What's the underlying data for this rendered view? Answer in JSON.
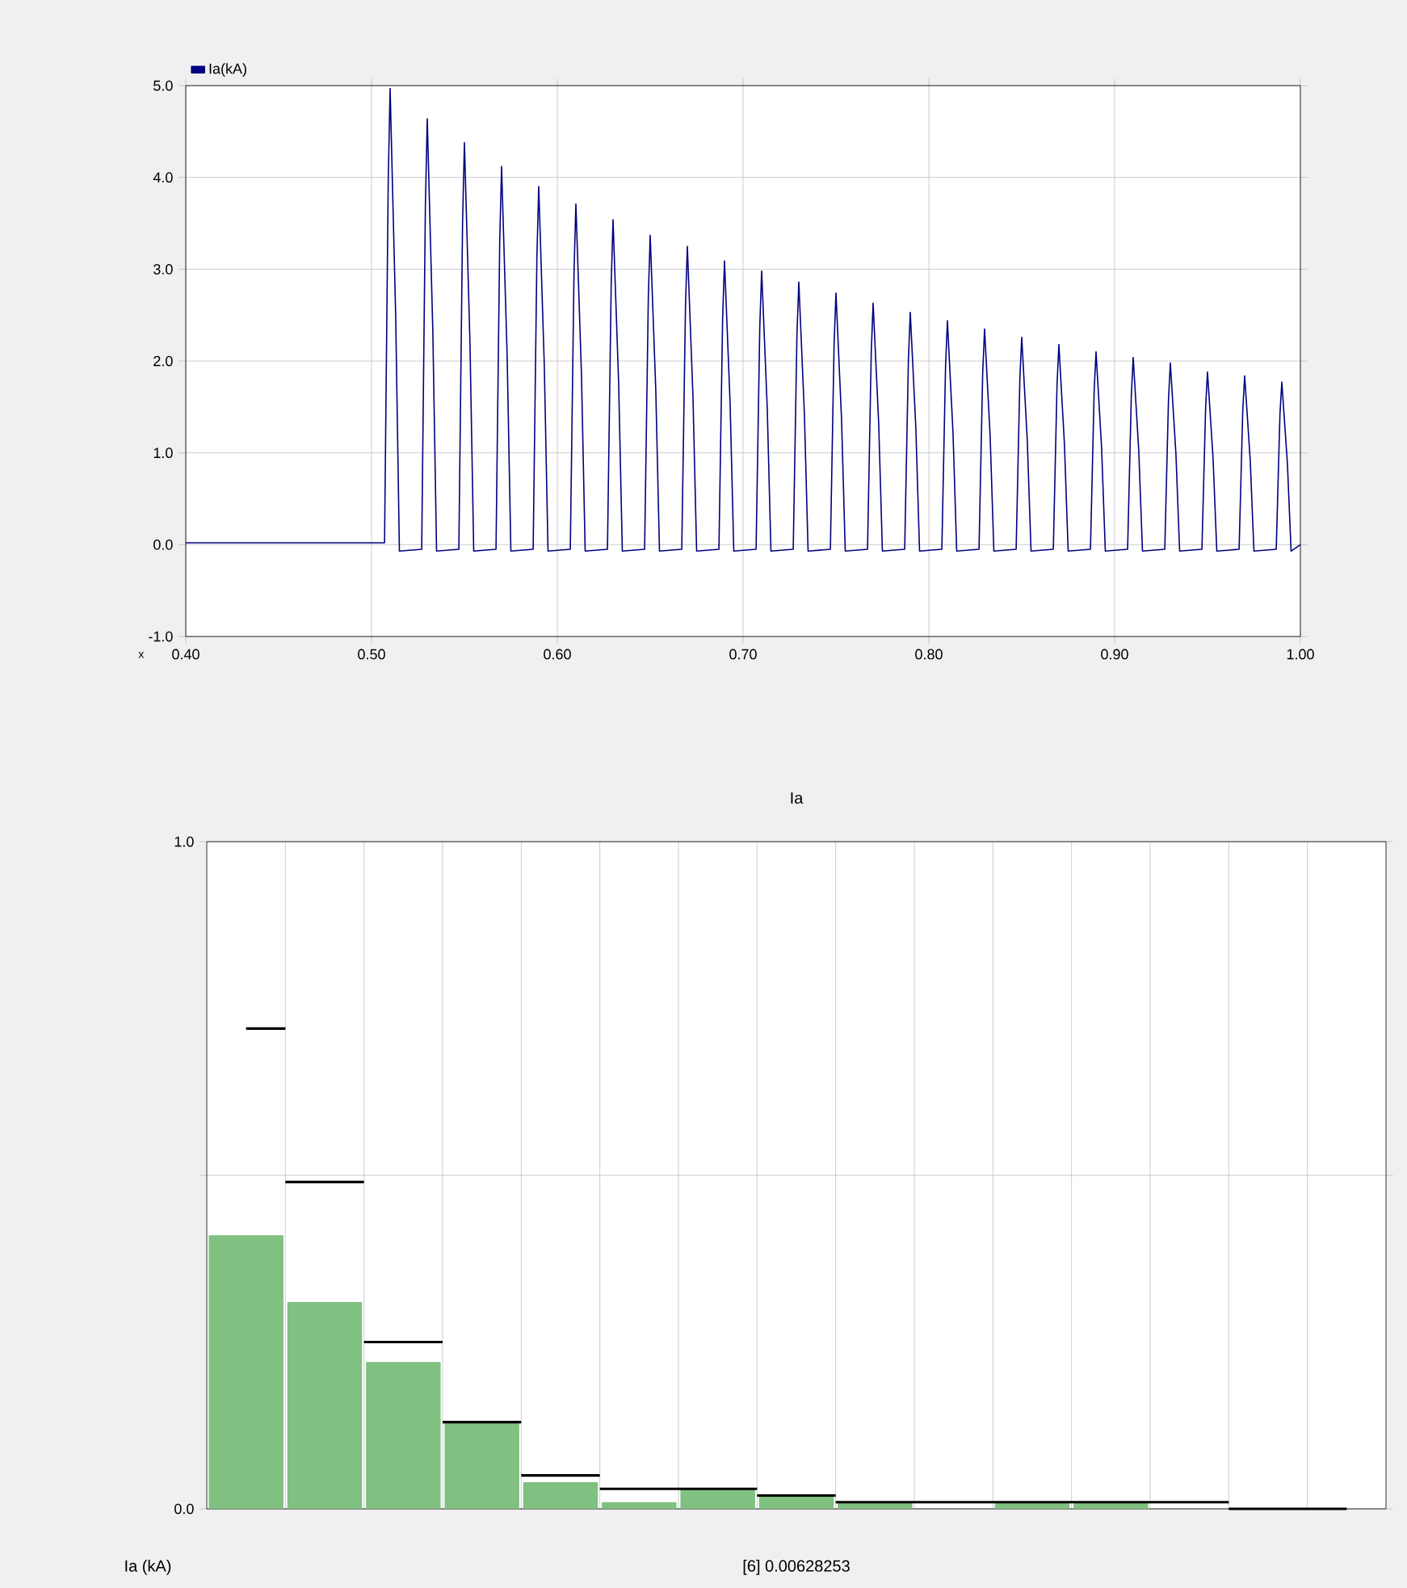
{
  "chart_data": [
    {
      "type": "line",
      "xlabel": "x",
      "xlim": [
        0.4,
        1.0
      ],
      "ylim": [
        -1,
        5
      ],
      "grid": true,
      "legend": "top left",
      "xticks": [
        {
          "value": 0.4,
          "label": "0.40"
        },
        {
          "value": 0.5,
          "label": "0.50"
        },
        {
          "value": 0.6,
          "label": "0.60"
        },
        {
          "value": 0.7,
          "label": "0.70"
        },
        {
          "value": 0.8,
          "label": "0.80"
        },
        {
          "value": 0.9,
          "label": "0.90"
        },
        {
          "value": 1.0,
          "label": "1.00"
        }
      ],
      "yticks": [
        {
          "value": -1,
          "label": "-1.0"
        },
        {
          "value": 0,
          "label": "0.0"
        },
        {
          "value": 1,
          "label": "1.0"
        },
        {
          "value": 2,
          "label": "2.0"
        },
        {
          "value": 3,
          "label": "3.0"
        },
        {
          "value": 4,
          "label": "4.0"
        },
        {
          "value": 5,
          "label": "5.0"
        }
      ],
      "series": [
        {
          "name": "Ia(kA)",
          "color": "#000080",
          "x": [
            0.4,
            0.505,
            0.507,
            0.509,
            0.51,
            0.513,
            0.515,
            0.527,
            0.529,
            0.53,
            0.533,
            0.535,
            0.547,
            0.549,
            0.55,
            0.553,
            0.555,
            0.567,
            0.569,
            0.57,
            0.573,
            0.575,
            0.587,
            0.589,
            0.59,
            0.593,
            0.595,
            0.607,
            0.609,
            0.61,
            0.613,
            0.615,
            0.627,
            0.629,
            0.63,
            0.633,
            0.635,
            0.647,
            0.649,
            0.65,
            0.653,
            0.655,
            0.667,
            0.669,
            0.67,
            0.673,
            0.675,
            0.687,
            0.689,
            0.69,
            0.693,
            0.695,
            0.707,
            0.709,
            0.71,
            0.713,
            0.715,
            0.727,
            0.729,
            0.73,
            0.733,
            0.735,
            0.747,
            0.749,
            0.75,
            0.753,
            0.755,
            0.767,
            0.769,
            0.77,
            0.773,
            0.775,
            0.787,
            0.789,
            0.79,
            0.793,
            0.795,
            0.807,
            0.809,
            0.81,
            0.813,
            0.815,
            0.827,
            0.829,
            0.83,
            0.833,
            0.835,
            0.847,
            0.849,
            0.85,
            0.853,
            0.855,
            0.867,
            0.869,
            0.87,
            0.873,
            0.875,
            0.887,
            0.889,
            0.89,
            0.893,
            0.895,
            0.907,
            0.909,
            0.91,
            0.913,
            0.915,
            0.927,
            0.929,
            0.93,
            0.933,
            0.935,
            0.947,
            0.949,
            0.95,
            0.953,
            0.955,
            0.967,
            0.969,
            0.97,
            0.973,
            0.975,
            0.987,
            0.989,
            0.99,
            0.993,
            0.995,
            1.0
          ],
          "values": [
            0.02,
            0.02,
            0.02,
            3.98,
            4.97,
            2.49,
            -0.07,
            -0.05,
            3.71,
            4.64,
            2.32,
            -0.07,
            -0.05,
            3.5,
            4.38,
            2.19,
            -0.07,
            -0.05,
            3.3,
            4.12,
            2.06,
            -0.07,
            -0.05,
            3.12,
            3.9,
            1.95,
            -0.07,
            -0.05,
            2.97,
            3.71,
            1.86,
            -0.07,
            -0.05,
            2.83,
            3.54,
            1.77,
            -0.07,
            -0.05,
            2.7,
            3.37,
            1.69,
            -0.07,
            -0.05,
            2.6,
            3.25,
            1.63,
            -0.07,
            -0.05,
            2.47,
            3.09,
            1.55,
            -0.07,
            -0.05,
            2.38,
            2.98,
            1.49,
            -0.07,
            -0.05,
            2.29,
            2.86,
            1.43,
            -0.07,
            -0.05,
            2.19,
            2.74,
            1.37,
            -0.07,
            -0.05,
            2.1,
            2.63,
            1.32,
            -0.07,
            -0.05,
            2.02,
            2.53,
            1.27,
            -0.07,
            -0.05,
            1.95,
            2.44,
            1.22,
            -0.07,
            -0.05,
            1.88,
            2.35,
            1.18,
            -0.07,
            -0.05,
            1.81,
            2.26,
            1.13,
            -0.07,
            -0.05,
            1.74,
            2.18,
            1.09,
            -0.07,
            -0.05,
            1.68,
            2.1,
            1.05,
            -0.07,
            -0.05,
            1.63,
            2.04,
            1.02,
            -0.07,
            -0.05,
            1.58,
            1.98,
            0.99,
            -0.07,
            -0.05,
            1.5,
            1.88,
            0.94,
            -0.07,
            -0.05,
            1.47,
            1.84,
            0.92,
            -0.07,
            -0.05,
            1.42,
            1.77,
            0.89,
            -0.07,
            0.0
          ]
        }
      ]
    },
    {
      "type": "bar",
      "title": "Ia",
      "ylim": [
        0,
        1
      ],
      "grid": true,
      "yticks": [
        {
          "value": 0,
          "label": "0.0"
        },
        {
          "value": 0.5,
          "label": null
        },
        {
          "value": 1,
          "label": "1.0"
        }
      ],
      "categories": [
        null,
        null,
        null,
        null,
        null,
        null,
        null,
        null,
        null,
        null,
        null,
        null,
        null,
        null,
        null
      ],
      "annotations": [
        "Ia (kA)",
        "[6]  0.00628253"
      ],
      "series": [
        {
          "type": "bar",
          "color": "#80c080",
          "values": [
            0.41,
            0.31,
            0.22,
            0.13,
            0.04,
            0.01,
            0.03,
            0.02,
            0.01,
            0.0,
            0.01,
            0.01,
            0.0,
            0.0,
            0.0
          ]
        },
        {
          "type": "step",
          "color": "#000000",
          "values": [
            0.72,
            0.49,
            0.25,
            0.13,
            0.05,
            0.03,
            0.03,
            0.02,
            0.01,
            0.01,
            0.01,
            0.01,
            0.01,
            0.0,
            0.0
          ]
        }
      ]
    }
  ]
}
